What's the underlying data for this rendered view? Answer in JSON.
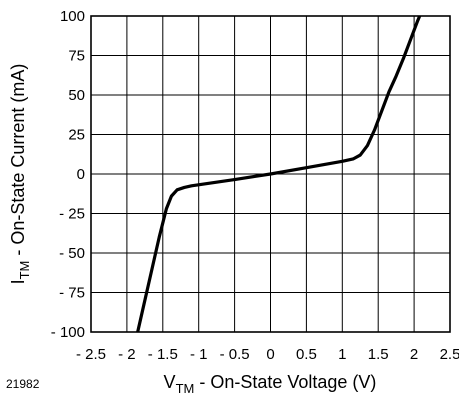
{
  "figure_number": "21982",
  "chart_data": {
    "type": "line",
    "xlabel": {
      "main": "V",
      "sub": "TM",
      "rest": " - On-State Voltage (V)"
    },
    "ylabel": {
      "main": "I",
      "sub": "TM",
      "rest": " - On-State Current (mA)"
    },
    "xlim": [
      -2.5,
      2.5
    ],
    "ylim": [
      -100,
      100
    ],
    "grid": true,
    "x_ticks": [
      -2.5,
      -2,
      -1.5,
      -1,
      -0.5,
      0,
      0.5,
      1,
      1.5,
      2,
      2.5
    ],
    "x_tick_labels": [
      "- 2.5",
      "- 2",
      "- 1.5",
      "- 1",
      "- 0.5",
      "0",
      "0.5",
      "1",
      "1.5",
      "2",
      "2.5"
    ],
    "y_ticks": [
      100,
      75,
      50,
      25,
      0,
      -25,
      -50,
      -75,
      -100
    ],
    "y_tick_labels": [
      "100",
      "75",
      "50",
      "25",
      "0",
      "- 25",
      "- 50",
      "- 75",
      "- 100"
    ],
    "series": [
      {
        "x": [
          -1.85,
          -1.75,
          -1.65,
          -1.55,
          -1.45,
          -1.38,
          -1.3,
          -1.2,
          -1.1,
          -0.5,
          0,
          0.5,
          1.0,
          1.15,
          1.25,
          1.35,
          1.45,
          1.55,
          1.65,
          1.75,
          1.85,
          1.95,
          2.05,
          2.15
        ],
        "y": [
          -100,
          -80,
          -60,
          -40,
          -22,
          -14,
          -10,
          -8.5,
          -7.5,
          -3.5,
          0,
          4,
          8,
          9.5,
          12,
          18,
          28,
          40,
          52,
          62,
          73,
          85,
          97,
          108
        ]
      }
    ]
  }
}
